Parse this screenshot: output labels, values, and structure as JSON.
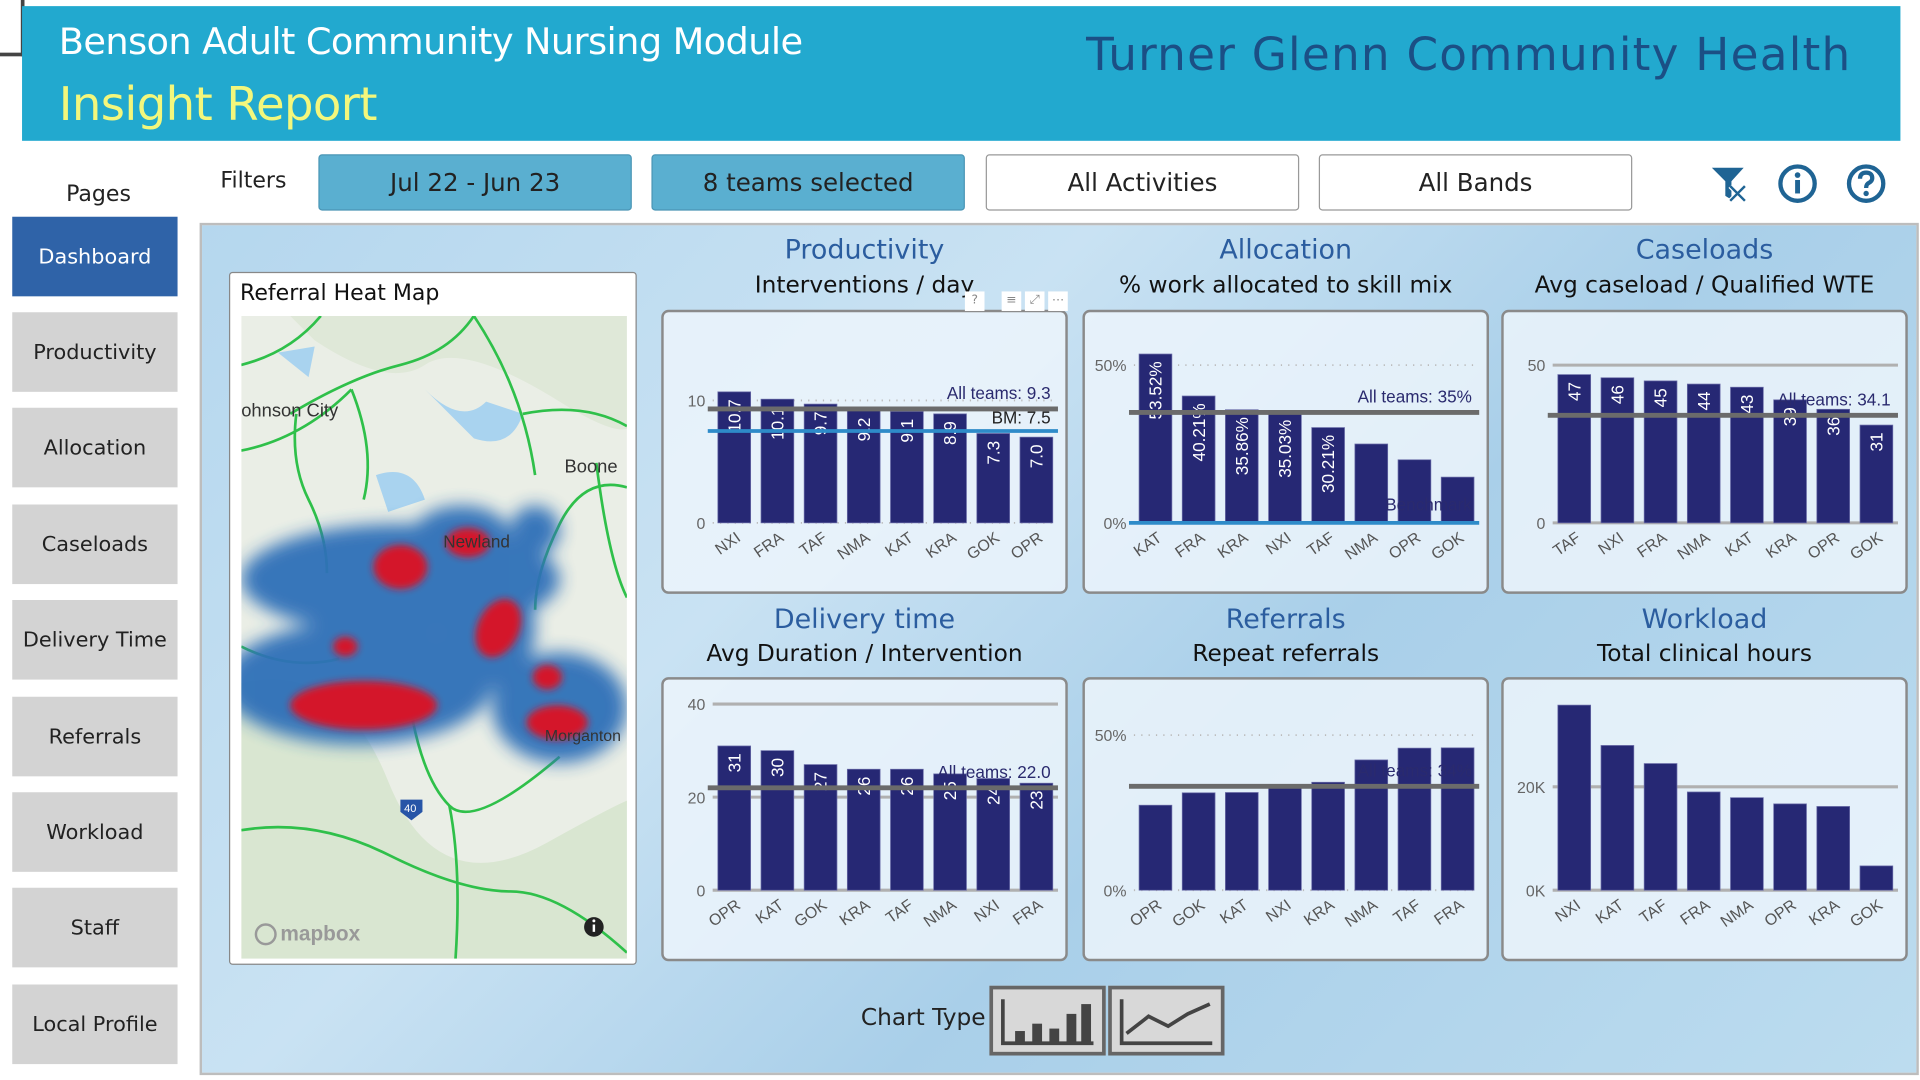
{
  "header": {
    "title": "Benson Adult Community Nursing Module",
    "subtitle": "Insight Report",
    "organisation": "Turner Glenn Community Health",
    "bg_color": "#22a9cf"
  },
  "sidebar": {
    "label": "Pages",
    "items": [
      {
        "label": "Dashboard",
        "active": true
      },
      {
        "label": "Productivity"
      },
      {
        "label": "Allocation"
      },
      {
        "label": "Caseloads"
      },
      {
        "label": "Delivery Time"
      },
      {
        "label": "Referrals"
      },
      {
        "label": "Workload"
      },
      {
        "label": "Staff"
      },
      {
        "label": "Local Profile"
      }
    ]
  },
  "filters": {
    "label": "Filters",
    "items": [
      {
        "label": "Jul 22 - Jun 23",
        "selected": true
      },
      {
        "label": "8 teams selected",
        "selected": true
      },
      {
        "label": "All Activities"
      },
      {
        "label": "All Bands"
      }
    ]
  },
  "header_icons": [
    "clear-filter-icon",
    "info-icon",
    "help-icon"
  ],
  "map": {
    "title": "Referral Heat Map",
    "places": [
      "ohnson City",
      "Boone",
      "Newland",
      "Morganton"
    ],
    "route": "40",
    "attribution": "mapbox"
  },
  "chart_type": {
    "label": "Chart Type",
    "options": [
      "bar-chart-icon",
      "line-chart-icon"
    ],
    "selected": "bar"
  },
  "colors": {
    "bar": "#262874",
    "ref_line": "#6b6b6b",
    "benchmark_line": "#2e8bc9",
    "title": "#2b5d9f"
  },
  "chart_data": [
    {
      "type": "bar",
      "title": "Productivity",
      "subtitle": "Interventions / day",
      "categories": [
        "NXI",
        "FRA",
        "TAF",
        "NMA",
        "KAT",
        "KRA",
        "GOK",
        "OPR"
      ],
      "values": [
        10.7,
        10.1,
        9.7,
        9.2,
        9.1,
        8.9,
        7.3,
        7.0
      ],
      "data_labels": [
        "10.7",
        "10.1",
        "9.7",
        "9.2",
        "9.1",
        "8.9",
        "7.3",
        "7.0"
      ],
      "ylim": [
        0,
        15.2
      ],
      "ticks": [
        {
          "v": 0,
          "label": "0"
        },
        {
          "v": 10,
          "label": "10"
        }
      ],
      "grid": "dotted",
      "ref_lines": [
        {
          "label": "All teams: 9.3",
          "value": 9.3,
          "color": "#6b6b6b"
        },
        {
          "label": "BM: 7.5",
          "value": 7.5,
          "color": "#2e8bc9"
        }
      ]
    },
    {
      "type": "bar",
      "title": "Allocation",
      "subtitle": "% work allocated to skill mix",
      "categories": [
        "KAT",
        "FRA",
        "KRA",
        "NXI",
        "TAF",
        "NMA",
        "OPR",
        "GOK"
      ],
      "values": [
        53.52,
        40.21,
        35.86,
        35.03,
        30.21,
        25,
        20,
        14.5
      ],
      "data_labels": [
        "53.52%",
        "40.21%",
        "35.86%",
        "35.03%",
        "30.21%",
        null,
        null,
        null
      ],
      "ylim": [
        0,
        59
      ],
      "ticks": [
        {
          "v": 0,
          "label": "0%"
        },
        {
          "v": 50,
          "label": "50%"
        }
      ],
      "grid": "dotted",
      "ref_lines": [
        {
          "label": "All teams: 35%",
          "value": 35,
          "color": "#6b6b6b"
        },
        {
          "label": "Benchmark",
          "value": 0,
          "color": "#2e8bc9"
        }
      ]
    },
    {
      "type": "bar",
      "title": "Caseloads",
      "subtitle": "Avg caseload / Qualified WTE",
      "categories": [
        "TAF",
        "NXI",
        "FRA",
        "NMA",
        "KAT",
        "KRA",
        "OPR",
        "GOK"
      ],
      "values": [
        47,
        46,
        45,
        44,
        43,
        39,
        36,
        31
      ],
      "data_labels": [
        "47",
        "46",
        "45",
        "44",
        "43",
        "39",
        "36",
        "31"
      ],
      "ylim": [
        0,
        59
      ],
      "ticks": [
        {
          "v": 0,
          "label": "0"
        },
        {
          "v": 50,
          "label": "50"
        }
      ],
      "grid": "solid",
      "ref_lines": [
        {
          "label": "All teams: 34.1",
          "value": 34.1,
          "color": "#6b6b6b"
        }
      ]
    },
    {
      "type": "bar",
      "title": "Delivery time",
      "subtitle": "Avg Duration / Intervention",
      "categories": [
        "OPR",
        "KAT",
        "GOK",
        "KRA",
        "TAF",
        "NMA",
        "NXI",
        "FRA"
      ],
      "values": [
        31,
        30,
        27,
        26,
        26,
        25,
        24,
        23
      ],
      "data_labels": [
        "31",
        "30",
        "27",
        "26",
        "26",
        "25",
        "24",
        "23"
      ],
      "ylim": [
        0,
        40
      ],
      "ticks": [
        {
          "v": 0,
          "label": "0"
        },
        {
          "v": 20,
          "label": "20"
        },
        {
          "v": 40,
          "label": "40"
        }
      ],
      "grid": "solid",
      "ref_lines": [
        {
          "label": "All teams: 22.0",
          "value": 22,
          "color": "#6b6b6b"
        }
      ]
    },
    {
      "type": "bar",
      "title": "Referrals",
      "subtitle": "Repeat referrals",
      "categories": [
        "OPR",
        "GOK",
        "KAT",
        "NXI",
        "KRA",
        "NMA",
        "TAF",
        "FRA"
      ],
      "values": [
        27.4,
        31.4,
        31.5,
        33.1,
        34.8,
        42,
        45.8,
        45.9
      ],
      "data_labels": [
        null,
        null,
        null,
        null,
        null,
        null,
        null,
        null
      ],
      "ylim": [
        0,
        60
      ],
      "ticks": [
        {
          "v": 0,
          "label": "0%"
        },
        {
          "v": 50,
          "label": "50%"
        }
      ],
      "grid": "dotted",
      "ref_lines": [
        {
          "label": "All teams: 34%",
          "value": 33.5,
          "color": "#6b6b6b"
        }
      ]
    },
    {
      "type": "bar",
      "title": "Workload",
      "subtitle": "Total clinical hours",
      "categories": [
        "NXI",
        "KAT",
        "TAF",
        "FRA",
        "NMA",
        "OPR",
        "KRA",
        "GOK"
      ],
      "values": [
        35800,
        28000,
        24500,
        19000,
        17900,
        16700,
        16200,
        4700
      ],
      "data_labels": [
        null,
        null,
        null,
        null,
        null,
        null,
        null,
        null
      ],
      "ylim": [
        0,
        36000
      ],
      "ticks": [
        {
          "v": 0,
          "label": "0K"
        },
        {
          "v": 20000,
          "label": "20K"
        }
      ],
      "grid": "solid",
      "ref_lines": []
    }
  ]
}
